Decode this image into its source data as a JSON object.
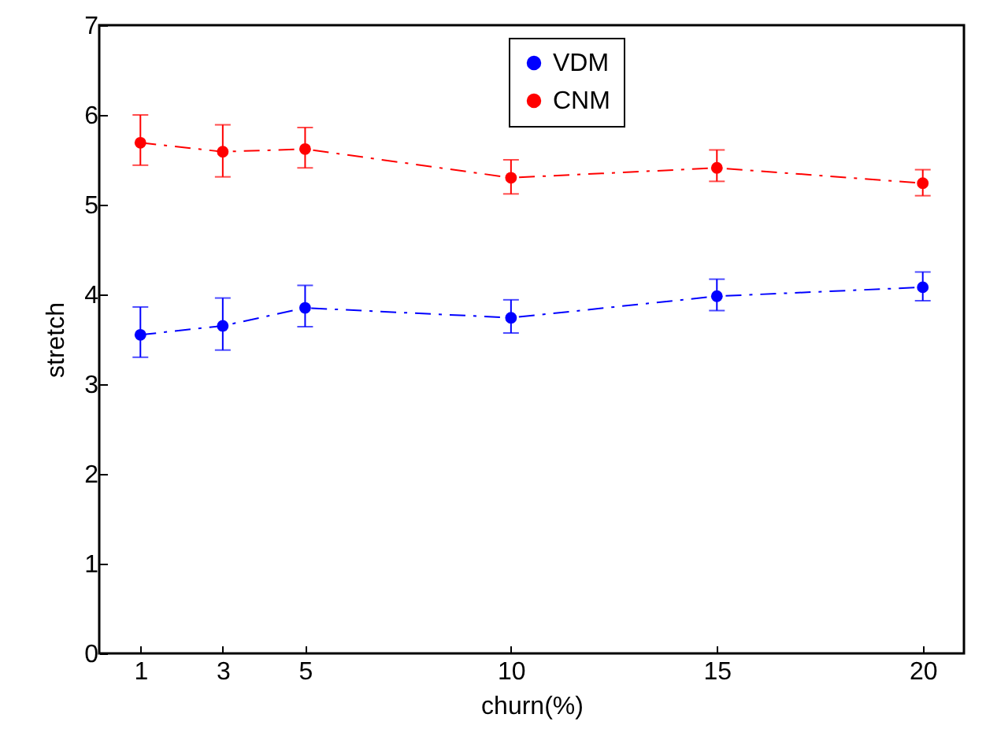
{
  "chart_data": {
    "type": "line",
    "xlabel": "churn(%)",
    "ylabel": "stretch",
    "x": [
      1,
      3,
      5,
      10,
      15,
      20
    ],
    "series": [
      {
        "name": "VDM",
        "color": "#0000ff",
        "values": [
          3.55,
          3.65,
          3.85,
          3.74,
          3.98,
          4.08
        ],
        "errors": [
          [
            3.3,
            3.86
          ],
          [
            3.38,
            3.96
          ],
          [
            3.64,
            4.1
          ],
          [
            3.57,
            3.94
          ],
          [
            3.82,
            4.17
          ],
          [
            3.93,
            4.25
          ]
        ]
      },
      {
        "name": "CNM",
        "color": "#ff0000",
        "values": [
          5.69,
          5.59,
          5.62,
          5.3,
          5.41,
          5.24
        ],
        "errors": [
          [
            5.44,
            6.0
          ],
          [
            5.31,
            5.89
          ],
          [
            5.41,
            5.86
          ],
          [
            5.12,
            5.5
          ],
          [
            5.26,
            5.61
          ],
          [
            5.1,
            5.39
          ]
        ]
      }
    ],
    "xlim": [
      0,
      21
    ],
    "xticks": [
      1,
      3,
      5,
      10,
      15,
      20
    ],
    "ylim": [
      0,
      7
    ],
    "yticks": [
      0,
      1,
      2,
      3,
      4,
      5,
      6,
      7
    ],
    "grid": false,
    "legend": "top",
    "marker": "circle",
    "line_style": "dashed"
  }
}
